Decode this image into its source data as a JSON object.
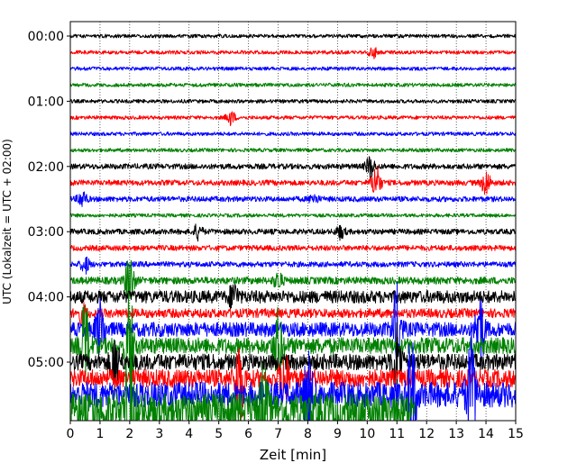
{
  "chart_data": {
    "type": "line",
    "chart_kind": "helicorder",
    "title": "",
    "xlabel": "Zeit  [min]",
    "ylabel": "UTC (Lokalzeit = UTC + 02:00)",
    "xlim": [
      0,
      15
    ],
    "x_ticks": [
      "0",
      "1",
      "2",
      "3",
      "4",
      "5",
      "6",
      "7",
      "8",
      "9",
      "10",
      "11",
      "12",
      "13",
      "14",
      "15"
    ],
    "y_tick_labels": [
      "00:00",
      "01:00",
      "02:00",
      "03:00",
      "04:00",
      "05:00"
    ],
    "rows_per_hour": 4,
    "row_count": 24,
    "trace_colors": [
      "#000000",
      "#ff0000",
      "#0000ff",
      "#008000"
    ],
    "grid": {
      "vertical_dotted": true
    },
    "traces": [
      {
        "start": "00:00",
        "color": "#000000",
        "amp": 2
      },
      {
        "start": "00:15",
        "color": "#ff0000",
        "amp": 2,
        "events": [
          {
            "x": 10.2,
            "amp": 6
          }
        ]
      },
      {
        "start": "00:30",
        "color": "#0000ff",
        "amp": 2
      },
      {
        "start": "00:45",
        "color": "#008000",
        "amp": 2
      },
      {
        "start": "01:00",
        "color": "#000000",
        "amp": 2
      },
      {
        "start": "01:15",
        "color": "#ff0000",
        "amp": 2,
        "events": [
          {
            "x": 5.4,
            "amp": 8
          }
        ]
      },
      {
        "start": "01:30",
        "color": "#0000ff",
        "amp": 2
      },
      {
        "start": "01:45",
        "color": "#008000",
        "amp": 2
      },
      {
        "start": "02:00",
        "color": "#000000",
        "amp": 3,
        "events": [
          {
            "x": 10.1,
            "amp": 12
          }
        ]
      },
      {
        "start": "02:15",
        "color": "#ff0000",
        "amp": 3,
        "events": [
          {
            "x": 10.3,
            "amp": 20
          },
          {
            "x": 14.0,
            "amp": 14
          }
        ]
      },
      {
        "start": "02:30",
        "color": "#0000ff",
        "amp": 3,
        "events": [
          {
            "x": 0.4,
            "amp": 9
          },
          {
            "x": 8.2,
            "amp": 5
          }
        ]
      },
      {
        "start": "02:45",
        "color": "#008000",
        "amp": 2
      },
      {
        "start": "03:00",
        "color": "#000000",
        "amp": 3,
        "events": [
          {
            "x": 4.3,
            "amp": 8
          },
          {
            "x": 9.1,
            "amp": 7
          }
        ]
      },
      {
        "start": "03:15",
        "color": "#ff0000",
        "amp": 3
      },
      {
        "start": "03:30",
        "color": "#0000ff",
        "amp": 3,
        "events": [
          {
            "x": 0.5,
            "amp": 9
          }
        ]
      },
      {
        "start": "03:45",
        "color": "#008000",
        "amp": 4,
        "events": [
          {
            "x": 2.0,
            "amp": 30
          },
          {
            "x": 7.0,
            "amp": 9
          }
        ]
      },
      {
        "start": "04:00",
        "color": "#000000",
        "amp": 7,
        "events": [
          {
            "x": 5.5,
            "amp": 14
          }
        ]
      },
      {
        "start": "04:15",
        "color": "#ff0000",
        "amp": 5,
        "events": [
          {
            "x": 0.4,
            "amp": 10
          }
        ]
      },
      {
        "start": "04:30",
        "color": "#0000ff",
        "amp": 8,
        "events": [
          {
            "x": 1.0,
            "amp": 30
          },
          {
            "x": 11.0,
            "amp": 45
          },
          {
            "x": 13.8,
            "amp": 40
          }
        ]
      },
      {
        "start": "04:45",
        "color": "#008000",
        "amp": 9,
        "events": [
          {
            "x": 0.5,
            "amp": 45
          },
          {
            "x": 2.0,
            "amp": 55
          },
          {
            "x": 7.0,
            "amp": 35
          }
        ]
      },
      {
        "start": "05:00",
        "color": "#000000",
        "amp": 9,
        "events": [
          {
            "x": 1.5,
            "amp": 30
          },
          {
            "x": 11.0,
            "amp": 40
          }
        ]
      },
      {
        "start": "05:15",
        "color": "#ff0000",
        "amp": 10,
        "events": [
          {
            "x": 5.7,
            "amp": 48
          },
          {
            "x": 7.2,
            "amp": 30
          }
        ]
      },
      {
        "start": "05:30",
        "color": "#0000ff",
        "amp": 14,
        "events": [
          {
            "x": 8.0,
            "amp": 45
          },
          {
            "x": 11.5,
            "amp": 60
          },
          {
            "x": 13.5,
            "amp": 55
          }
        ]
      },
      {
        "start": "05:45",
        "color": "#008000",
        "amp": 20,
        "end_x": 11.6,
        "events": [
          {
            "x": 2.0,
            "amp": 60
          },
          {
            "x": 6.5,
            "amp": 45
          }
        ]
      }
    ]
  }
}
